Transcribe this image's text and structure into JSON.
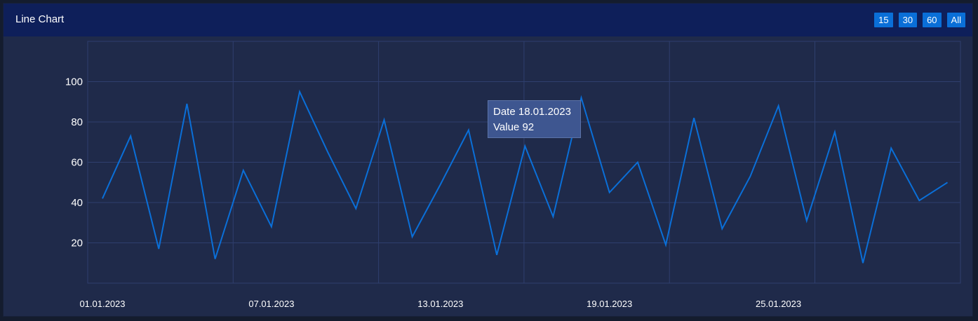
{
  "header": {
    "title": "Line Chart",
    "range_buttons": [
      "15",
      "30",
      "60",
      "All"
    ]
  },
  "tooltip": {
    "date_label": "Date",
    "date": "18.01.2023",
    "value_label": "Value",
    "value": "92"
  },
  "colors": {
    "line": "#0a6fd8",
    "background": "#1f2a4a",
    "header": "#0e1f5a",
    "grid": "#2f3f6e"
  },
  "chart_data": {
    "type": "line",
    "title": "Line Chart",
    "xlabel": "",
    "ylabel": "",
    "x": [
      "01.01.2023",
      "02.01.2023",
      "03.01.2023",
      "04.01.2023",
      "05.01.2023",
      "06.01.2023",
      "07.01.2023",
      "08.01.2023",
      "09.01.2023",
      "10.01.2023",
      "11.01.2023",
      "12.01.2023",
      "13.01.2023",
      "14.01.2023",
      "15.01.2023",
      "16.01.2023",
      "17.01.2023",
      "18.01.2023",
      "19.01.2023",
      "20.01.2023",
      "21.01.2023",
      "22.01.2023",
      "23.01.2023",
      "24.01.2023",
      "25.01.2023",
      "26.01.2023",
      "27.01.2023",
      "28.01.2023",
      "29.01.2023",
      "30.01.2023",
      "31.01.2023"
    ],
    "values": [
      42,
      73,
      17,
      89,
      12,
      56,
      28,
      95,
      65,
      37,
      81,
      23,
      49,
      76,
      14,
      68,
      33,
      92,
      45,
      60,
      19,
      82,
      27,
      53,
      88,
      31,
      75,
      10,
      67,
      41,
      50
    ],
    "x_tick_labels": [
      "01.01.2023",
      "07.01.2023",
      "13.01.2023",
      "19.01.2023",
      "25.01.2023"
    ],
    "y_ticks": [
      20,
      40,
      60,
      80,
      100
    ],
    "ylim": [
      0,
      120
    ],
    "grid": true,
    "legend": "none"
  }
}
